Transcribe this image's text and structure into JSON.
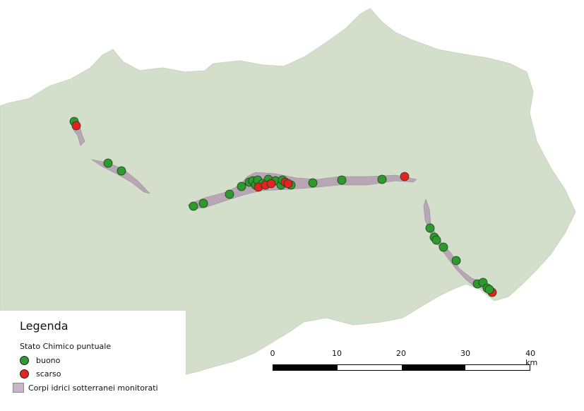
{
  "legend": {
    "title": "Legenda",
    "subtitle": "Stato Chimico puntuale",
    "items": [
      {
        "label": "buono",
        "color": "#2e9a2e",
        "symbol": "circle"
      },
      {
        "label": "scarso",
        "color": "#e52222",
        "symbol": "circle"
      },
      {
        "label": "Corpi idrici sotterranei monitorati",
        "color": "#c9b4c8",
        "symbol": "polygon"
      }
    ]
  },
  "scale_bar": {
    "ticks": [
      "0",
      "10",
      "20",
      "30",
      "40 km"
    ]
  },
  "colors": {
    "region_fill": "#d3dfcb",
    "aquifer_fill": "#b8a6b5",
    "good": "#2e9a2e",
    "poor": "#e52222"
  }
}
